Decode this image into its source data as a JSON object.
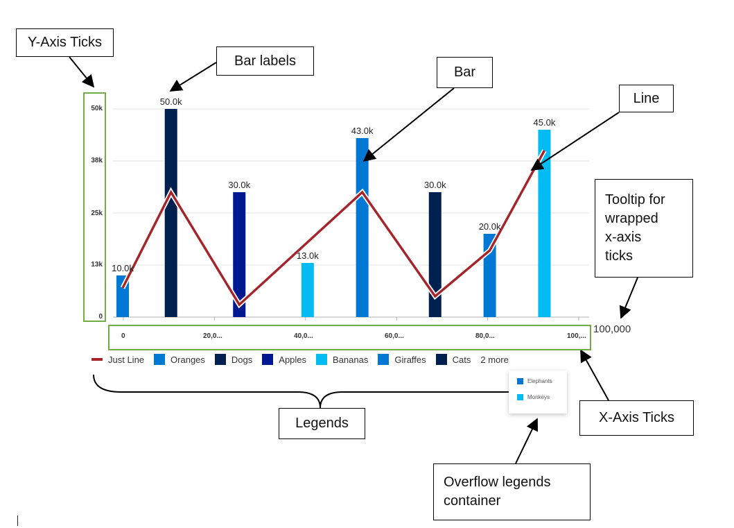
{
  "callouts": {
    "y_axis_ticks": "Y-Axis Ticks",
    "bar_labels": "Bar labels",
    "bar": "Bar",
    "line": "Line",
    "tooltip_line1": "Tooltip for",
    "tooltip_line2": "wrapped",
    "tooltip_line3": "x-axis",
    "tooltip_line4": "ticks",
    "legends": "Legends",
    "x_axis_ticks": "X-Axis Ticks",
    "overflow_line1": "Overflow legends",
    "overflow_line2": "container"
  },
  "tooltip_value": "100,000",
  "legend": {
    "items": [
      {
        "label": "Just Line",
        "color": "#a4262c",
        "kind": "line"
      },
      {
        "label": "Oranges",
        "color": "#0078d4",
        "kind": "bar"
      },
      {
        "label": "Dogs",
        "color": "#002050",
        "kind": "bar"
      },
      {
        "label": "Apples",
        "color": "#00188f",
        "kind": "bar"
      },
      {
        "label": "Bananas",
        "color": "#00bcf2",
        "kind": "bar"
      },
      {
        "label": "Giraffes",
        "color": "#0078d4",
        "kind": "bar"
      },
      {
        "label": "Cats",
        "color": "#002050",
        "kind": "bar"
      }
    ],
    "more_label": "2 more",
    "overflow": [
      {
        "label": "Elephants",
        "color": "#0078d4"
      },
      {
        "label": "Monkeys",
        "color": "#00bcf2"
      }
    ]
  },
  "chart_data": {
    "type": "bar",
    "ylim": [
      0,
      50000
    ],
    "xlim": [
      0,
      100000
    ],
    "y_ticks": [
      "50k",
      "38k",
      "25k",
      "13k",
      "0"
    ],
    "x_ticks": [
      "0",
      "20,0...",
      "40,0...",
      "60,0...",
      "80,0...",
      "100,..."
    ],
    "bars": [
      {
        "name": "Oranges",
        "x": 0,
        "value": 10000,
        "label": "10.0k",
        "color": "#0078d4"
      },
      {
        "name": "Dogs",
        "x": 10000,
        "value": 50000,
        "label": "50.0k",
        "color": "#002050"
      },
      {
        "name": "Apples",
        "x": 25000,
        "value": 30000,
        "label": "30.0k",
        "color": "#00188f"
      },
      {
        "name": "Bananas",
        "x": 40000,
        "value": 13000,
        "label": "13.0k",
        "color": "#00bcf2"
      },
      {
        "name": "Giraffes",
        "x": 52000,
        "value": 43000,
        "label": "43.0k",
        "color": "#0078d4"
      },
      {
        "name": "Cats",
        "x": 68000,
        "value": 30000,
        "label": "30.0k",
        "color": "#002050"
      },
      {
        "name": "Elephants",
        "x": 80000,
        "value": 20000,
        "label": "20.0k",
        "color": "#0078d4"
      },
      {
        "name": "Monkeys",
        "x": 92000,
        "value": 45000,
        "label": "45.0k",
        "color": "#00bcf2"
      }
    ],
    "line": {
      "name": "Just Line",
      "color": "#a4262c",
      "points": [
        {
          "x": 0,
          "y": 7000
        },
        {
          "x": 10000,
          "y": 30000
        },
        {
          "x": 25000,
          "y": 3000
        },
        {
          "x": 52000,
          "y": 30000
        },
        {
          "x": 68000,
          "y": 5000
        },
        {
          "x": 80000,
          "y": 16000
        },
        {
          "x": 92000,
          "y": 40000
        }
      ]
    }
  }
}
